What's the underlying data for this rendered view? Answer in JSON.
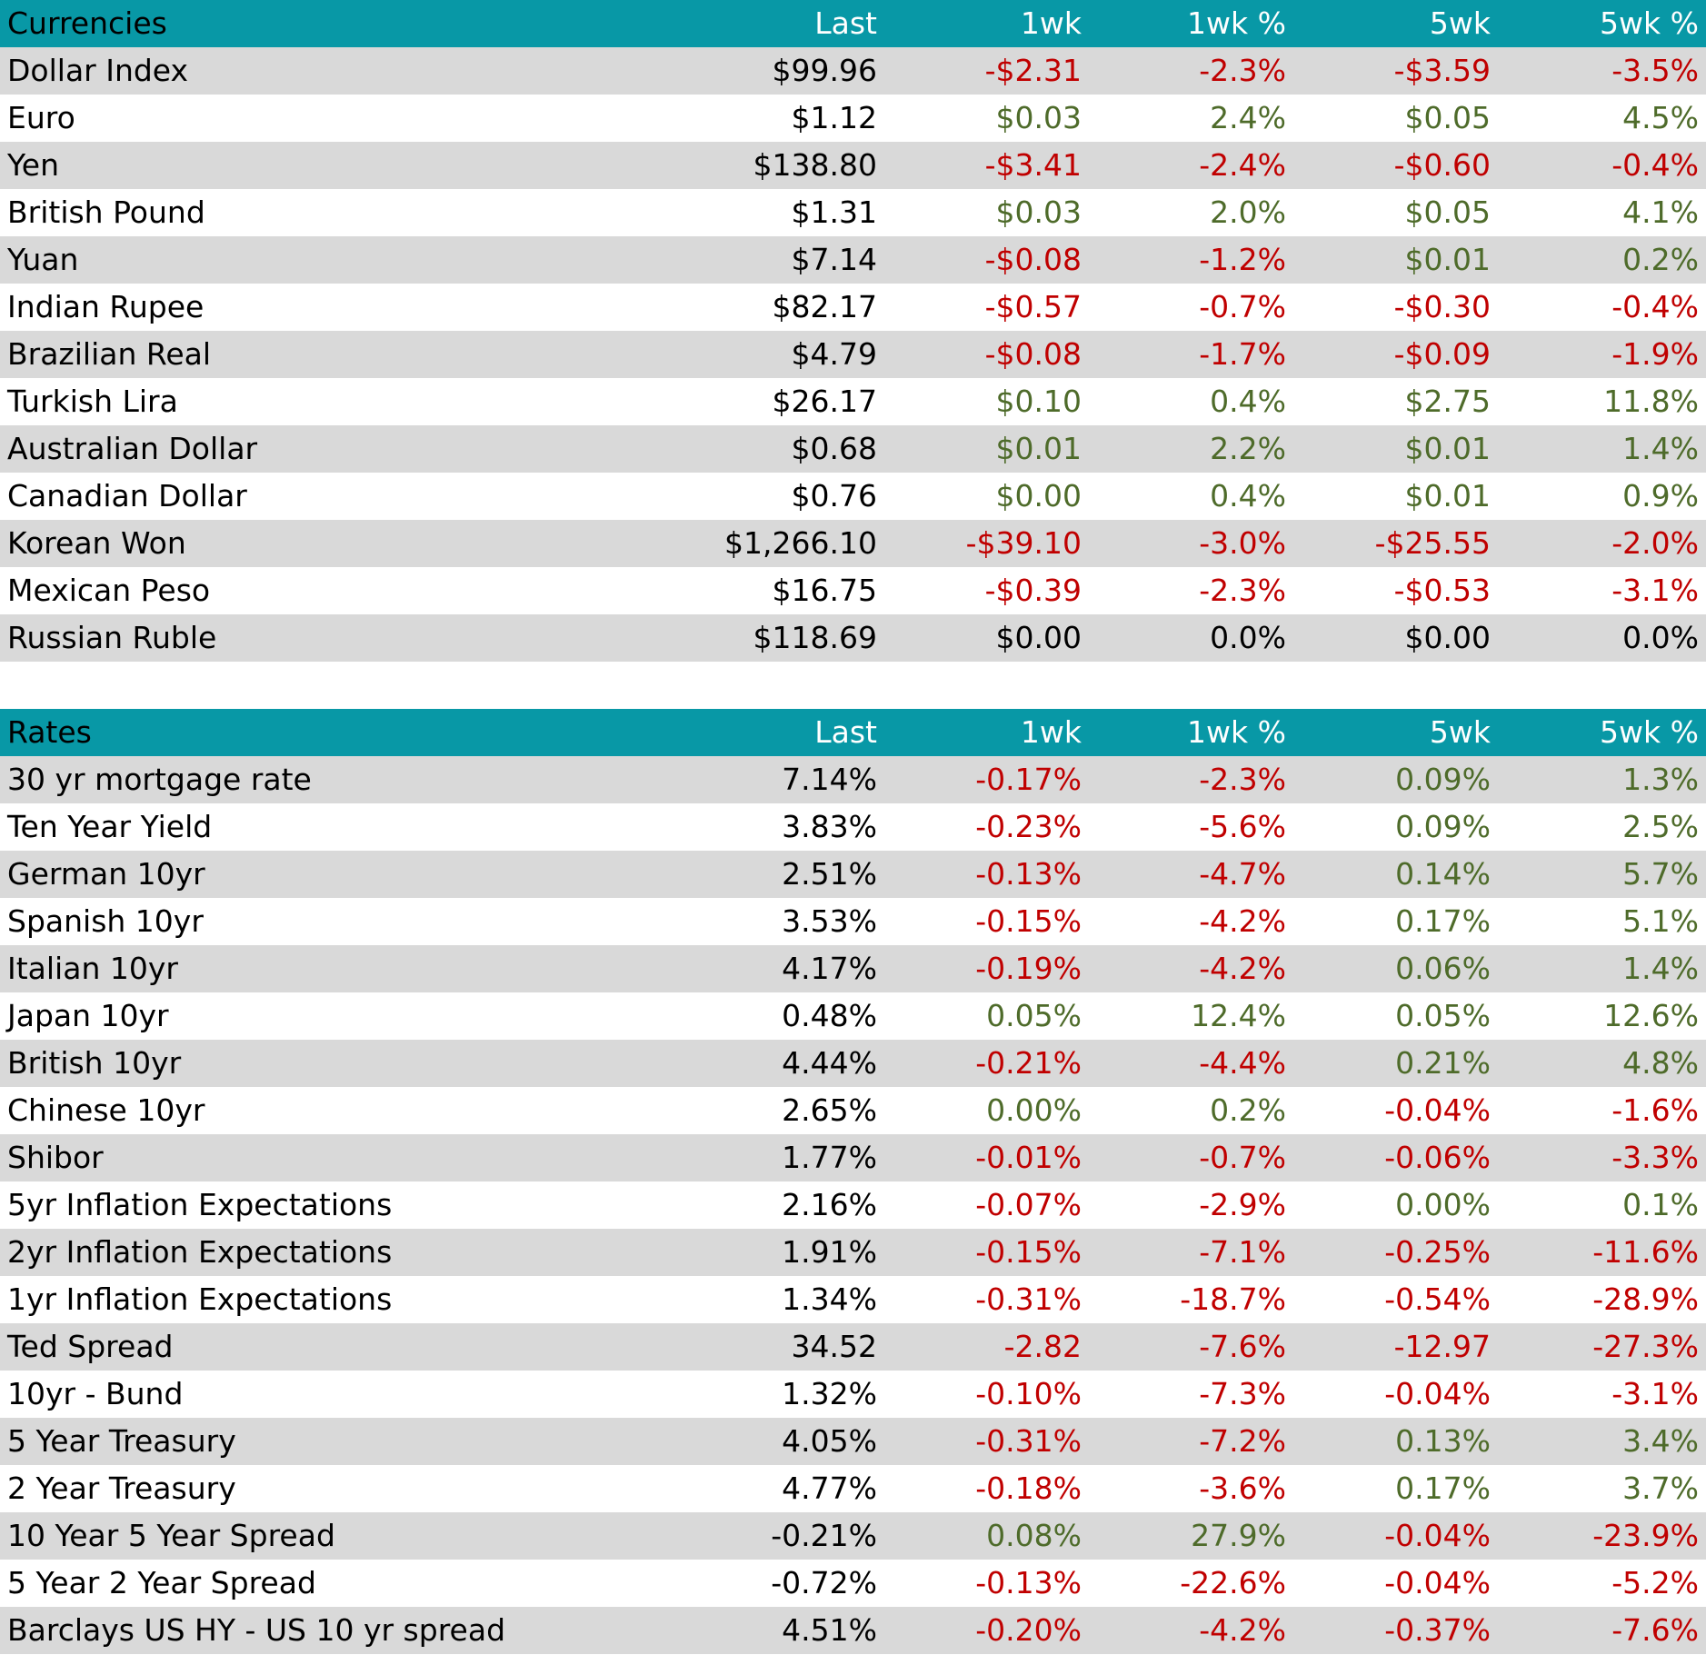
{
  "currencies": {
    "headers": [
      "Currencies",
      "Last",
      "1wk",
      "1wk %",
      "5wk",
      "5wk %"
    ],
    "rows": [
      [
        "Dollar Index",
        "$99.96",
        "-$2.31",
        "-2.3%",
        "-$3.59",
        "-3.5%"
      ],
      [
        "Euro",
        "$1.12",
        "$0.03",
        "2.4%",
        "$0.05",
        "4.5%"
      ],
      [
        "Yen",
        "$138.80",
        "-$3.41",
        "-2.4%",
        "-$0.60",
        "-0.4%"
      ],
      [
        "British Pound",
        "$1.31",
        "$0.03",
        "2.0%",
        "$0.05",
        "4.1%"
      ],
      [
        "Yuan",
        "$7.14",
        "-$0.08",
        "-1.2%",
        "$0.01",
        "0.2%"
      ],
      [
        "Indian Rupee",
        "$82.17",
        "-$0.57",
        "-0.7%",
        "-$0.30",
        "-0.4%"
      ],
      [
        "Brazilian Real",
        "$4.79",
        "-$0.08",
        "-1.7%",
        "-$0.09",
        "-1.9%"
      ],
      [
        "Turkish Lira",
        "$26.17",
        "$0.10",
        "0.4%",
        "$2.75",
        "11.8%"
      ],
      [
        "Australian Dollar",
        "$0.68",
        "$0.01",
        "2.2%",
        "$0.01",
        "1.4%"
      ],
      [
        "Canadian Dollar",
        "$0.76",
        "$0.00",
        "0.4%",
        "$0.01",
        "0.9%"
      ],
      [
        "Korean Won",
        "$1,266.10",
        "-$39.10",
        "-3.0%",
        "-$25.55",
        "-2.0%"
      ],
      [
        "Mexican Peso",
        "$16.75",
        "-$0.39",
        "-2.3%",
        "-$0.53",
        "-3.1%"
      ],
      [
        "Russian Ruble",
        "$118.69",
        "$0.00",
        "0.0%",
        "$0.00",
        "0.0%"
      ]
    ]
  },
  "rates": {
    "headers": [
      "Rates",
      "Last",
      "1wk",
      "1wk %",
      "5wk",
      "5wk %"
    ],
    "rows": [
      [
        "30 yr mortgage rate",
        "7.14%",
        "-0.17%",
        "-2.3%",
        "0.09%",
        "1.3%"
      ],
      [
        "Ten Year Yield",
        "3.83%",
        "-0.23%",
        "-5.6%",
        "0.09%",
        "2.5%"
      ],
      [
        "German 10yr",
        "2.51%",
        "-0.13%",
        "-4.7%",
        "0.14%",
        "5.7%"
      ],
      [
        "Spanish 10yr",
        "3.53%",
        "-0.15%",
        "-4.2%",
        "0.17%",
        "5.1%"
      ],
      [
        "Italian 10yr",
        "4.17%",
        "-0.19%",
        "-4.2%",
        "0.06%",
        "1.4%"
      ],
      [
        "Japan 10yr",
        "0.48%",
        "0.05%",
        "12.4%",
        "0.05%",
        "12.6%"
      ],
      [
        "British 10yr",
        "4.44%",
        "-0.21%",
        "-4.4%",
        "0.21%",
        "4.8%"
      ],
      [
        "Chinese 10yr",
        "2.65%",
        "0.00%",
        "0.2%",
        "-0.04%",
        "-1.6%"
      ],
      [
        "Shibor",
        "1.77%",
        "-0.01%",
        "-0.7%",
        "-0.06%",
        "-3.3%"
      ],
      [
        "5yr Inflation Expectations",
        "2.16%",
        "-0.07%",
        "-2.9%",
        "0.00%",
        "0.1%"
      ],
      [
        "2yr Inflation Expectations",
        "1.91%",
        "-0.15%",
        "-7.1%",
        "-0.25%",
        "-11.6%"
      ],
      [
        "1yr Inflation Expectations",
        "1.34%",
        "-0.31%",
        "-18.7%",
        "-0.54%",
        "-28.9%"
      ],
      [
        "Ted Spread",
        "34.52",
        "-2.82",
        "-7.6%",
        "-12.97",
        "-27.3%"
      ],
      [
        "10yr - Bund",
        "1.32%",
        "-0.10%",
        "-7.3%",
        "-0.04%",
        "-3.1%"
      ],
      [
        "5 Year Treasury",
        "4.05%",
        "-0.31%",
        "-7.2%",
        "0.13%",
        "3.4%"
      ],
      [
        "2 Year Treasury",
        "4.77%",
        "-0.18%",
        "-3.6%",
        "0.17%",
        "3.7%"
      ],
      [
        "10 Year 5 Year Spread",
        "-0.21%",
        "0.08%",
        "27.9%",
        "-0.04%",
        "-23.9%"
      ],
      [
        "5 Year 2 Year Spread",
        "-0.72%",
        "-0.13%",
        "-22.6%",
        "-0.04%",
        "-5.2%"
      ],
      [
        "Barclays US HY - US 10 yr spread",
        "4.51%",
        "-0.20%",
        "-4.2%",
        "-0.37%",
        "-7.6%"
      ]
    ]
  },
  "colors": {
    "header_bg": "#0898a6",
    "negative": "#c00000",
    "positive": "#4e6b2a",
    "band": "#d9d9d9"
  }
}
